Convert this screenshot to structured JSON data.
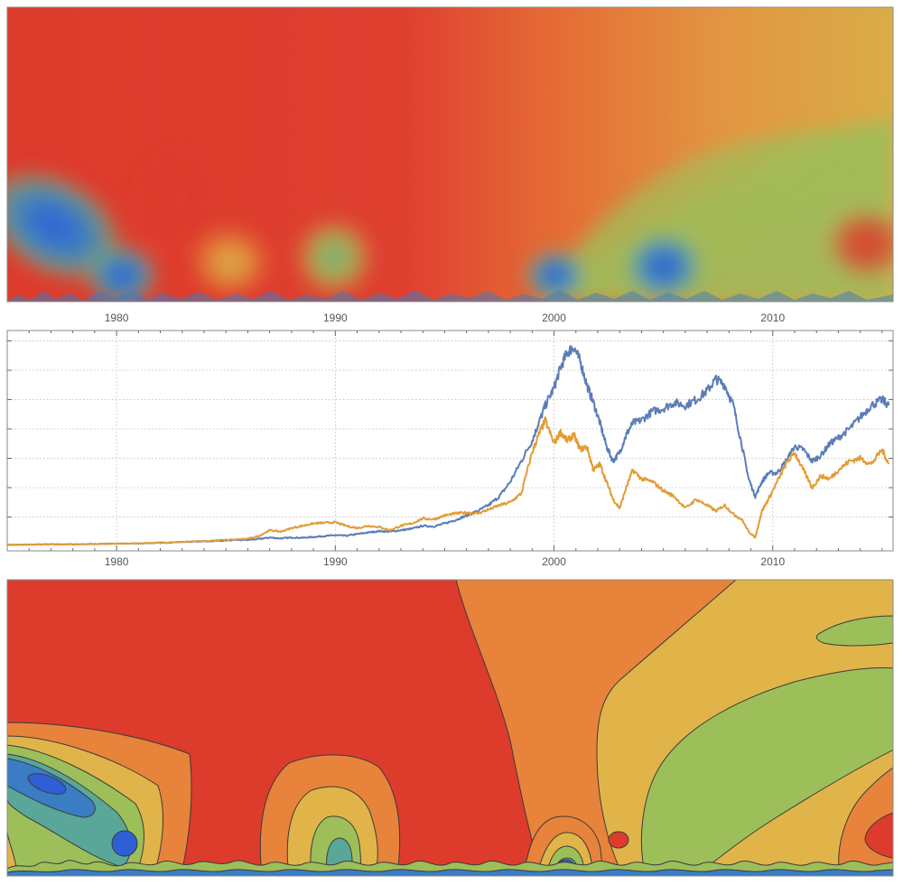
{
  "colors": {
    "series_1": "#5b7db8",
    "series_2": "#e39c35",
    "wavelet_high": "#dd3b2c",
    "wavelet_mid_high": "#e7833a",
    "wavelet_mid": "#e0b449",
    "wavelet_mid_low": "#9cbf5a",
    "wavelet_low_1": "#5aa79a",
    "wavelet_low_2": "#3a7dc4",
    "wavelet_low_3": "#2f5fd6",
    "contour_line": "#3c3c3c"
  },
  "chart_data": [
    {
      "type": "heatmap",
      "title": "",
      "xlabel": "",
      "ylabel": "",
      "x_axis": {
        "tick_labels": [
          "1980",
          "1990",
          "2000",
          "2010"
        ],
        "tick_values": [
          1980,
          1990,
          2000,
          2010
        ],
        "range": [
          1975,
          2015.5
        ],
        "printed_below": true
      },
      "style": "smooth scalogram",
      "colormap_order_high_to_low": [
        "red",
        "orange",
        "yellow",
        "green",
        "teal",
        "blue"
      ],
      "features": [
        {
          "region": "upper-left band",
          "level": "high"
        },
        {
          "region": "upper-right band",
          "level": "mid"
        },
        {
          "region": "near 1976-1979, lower scales",
          "level": "low"
        },
        {
          "region": "near 2008-2013, mid scales",
          "level": "mid-low"
        }
      ],
      "grid": false,
      "legend": "none"
    },
    {
      "type": "line",
      "title": "",
      "xlabel": "",
      "ylabel": "",
      "x_axis": {
        "tick_labels": [
          "1980",
          "1990",
          "2000",
          "2010"
        ],
        "tick_values": [
          1980,
          1990,
          2000,
          2010
        ],
        "range": [
          1975,
          2015.5
        ]
      },
      "y_axis": {
        "tick_labels": [],
        "range": [
          0,
          7.2
        ],
        "gridlines": [
          1,
          2,
          3,
          4,
          5,
          6,
          7
        ]
      },
      "grid": true,
      "legend": "none",
      "series": [
        {
          "color_key": "series_1",
          "x": [
            1975.0,
            1976.0,
            1977.0,
            1978.0,
            1979.0,
            1980.0,
            1981.0,
            1982.0,
            1983.0,
            1984.0,
            1985.0,
            1986.0,
            1986.5,
            1987.0,
            1987.5,
            1988.0,
            1988.5,
            1989.0,
            1989.5,
            1990.0,
            1990.5,
            1991.0,
            1991.5,
            1992.0,
            1992.5,
            1993.0,
            1993.5,
            1994.0,
            1994.5,
            1995.0,
            1995.5,
            1996.0,
            1996.5,
            1997.0,
            1997.5,
            1998.0,
            1998.5,
            1999.0,
            1999.3,
            1999.6,
            2000.0,
            2000.3,
            2000.6,
            2000.9,
            2001.2,
            2001.5,
            2001.8,
            2002.1,
            2002.4,
            2002.7,
            2003.0,
            2003.3,
            2003.6,
            2004.0,
            2004.5,
            2005.0,
            2005.5,
            2006.0,
            2006.5,
            2007.0,
            2007.4,
            2007.8,
            2008.2,
            2008.6,
            2008.9,
            2009.2,
            2009.5,
            2009.8,
            2010.2,
            2010.6,
            2011.0,
            2011.4,
            2011.8,
            2012.2,
            2012.6,
            2013.0,
            2013.5,
            2014.0,
            2014.5,
            2015.0,
            2015.3
          ],
          "values": [
            0.05,
            0.06,
            0.07,
            0.07,
            0.08,
            0.09,
            0.1,
            0.12,
            0.15,
            0.17,
            0.2,
            0.22,
            0.25,
            0.3,
            0.27,
            0.3,
            0.29,
            0.32,
            0.35,
            0.38,
            0.36,
            0.42,
            0.47,
            0.52,
            0.5,
            0.55,
            0.6,
            0.7,
            0.68,
            0.78,
            0.9,
            1.05,
            1.2,
            1.4,
            1.7,
            2.2,
            2.9,
            3.6,
            4.2,
            4.8,
            5.4,
            6.1,
            6.6,
            6.8,
            6.3,
            5.5,
            4.9,
            4.2,
            3.4,
            2.9,
            3.2,
            3.8,
            4.2,
            4.3,
            4.6,
            4.7,
            4.9,
            4.8,
            5.0,
            5.3,
            5.7,
            5.5,
            4.8,
            3.4,
            2.3,
            1.7,
            2.2,
            2.5,
            2.5,
            2.9,
            3.4,
            3.3,
            2.9,
            3.1,
            3.5,
            3.7,
            4.0,
            4.4,
            4.8,
            5.0,
            4.8
          ]
        },
        {
          "color_key": "series_2",
          "x": [
            1975.0,
            1976.0,
            1977.0,
            1978.0,
            1979.0,
            1980.0,
            1981.0,
            1982.0,
            1983.0,
            1984.0,
            1985.0,
            1986.0,
            1986.5,
            1987.0,
            1987.5,
            1988.0,
            1988.5,
            1989.0,
            1989.5,
            1990.0,
            1990.5,
            1991.0,
            1991.5,
            1992.0,
            1992.5,
            1993.0,
            1993.5,
            1994.0,
            1994.5,
            1995.0,
            1995.5,
            1996.0,
            1996.5,
            1997.0,
            1997.5,
            1998.0,
            1998.5,
            1999.0,
            1999.3,
            1999.6,
            2000.0,
            2000.3,
            2000.6,
            2000.9,
            2001.2,
            2001.5,
            2001.8,
            2002.1,
            2002.4,
            2002.7,
            2003.0,
            2003.3,
            2003.6,
            2004.0,
            2004.5,
            2005.0,
            2005.5,
            2006.0,
            2006.5,
            2007.0,
            2007.4,
            2007.8,
            2008.2,
            2008.6,
            2008.9,
            2009.2,
            2009.5,
            2009.8,
            2010.2,
            2010.6,
            2011.0,
            2011.4,
            2011.8,
            2012.2,
            2012.6,
            2013.0,
            2013.5,
            2014.0,
            2014.5,
            2015.0,
            2015.3
          ],
          "values": [
            0.05,
            0.06,
            0.07,
            0.07,
            0.08,
            0.09,
            0.1,
            0.12,
            0.15,
            0.18,
            0.22,
            0.26,
            0.35,
            0.55,
            0.5,
            0.62,
            0.7,
            0.78,
            0.8,
            0.82,
            0.7,
            0.62,
            0.7,
            0.66,
            0.55,
            0.7,
            0.78,
            0.95,
            0.92,
            1.05,
            1.12,
            1.15,
            1.12,
            1.25,
            1.4,
            1.5,
            1.8,
            3.2,
            3.8,
            4.3,
            3.5,
            3.9,
            3.6,
            3.8,
            3.3,
            3.4,
            2.6,
            2.8,
            2.2,
            1.6,
            1.3,
            2.0,
            2.6,
            2.3,
            2.2,
            1.9,
            1.7,
            1.3,
            1.6,
            1.4,
            1.2,
            1.4,
            1.1,
            0.9,
            0.5,
            0.3,
            1.2,
            1.6,
            2.2,
            2.8,
            3.2,
            2.6,
            2.0,
            2.4,
            2.3,
            2.6,
            2.9,
            3.0,
            2.8,
            3.3,
            2.8
          ]
        }
      ]
    },
    {
      "type": "heatmap",
      "title": "",
      "xlabel": "",
      "ylabel": "",
      "x_axis": {
        "tick_labels": [],
        "range": [
          1975,
          2015.5
        ]
      },
      "style": "filled contour plot",
      "contour_levels": 9,
      "colormap_order_high_to_low": [
        "red",
        "orange",
        "yellow",
        "green",
        "teal",
        "blue"
      ],
      "grid": false,
      "legend": "none"
    }
  ]
}
